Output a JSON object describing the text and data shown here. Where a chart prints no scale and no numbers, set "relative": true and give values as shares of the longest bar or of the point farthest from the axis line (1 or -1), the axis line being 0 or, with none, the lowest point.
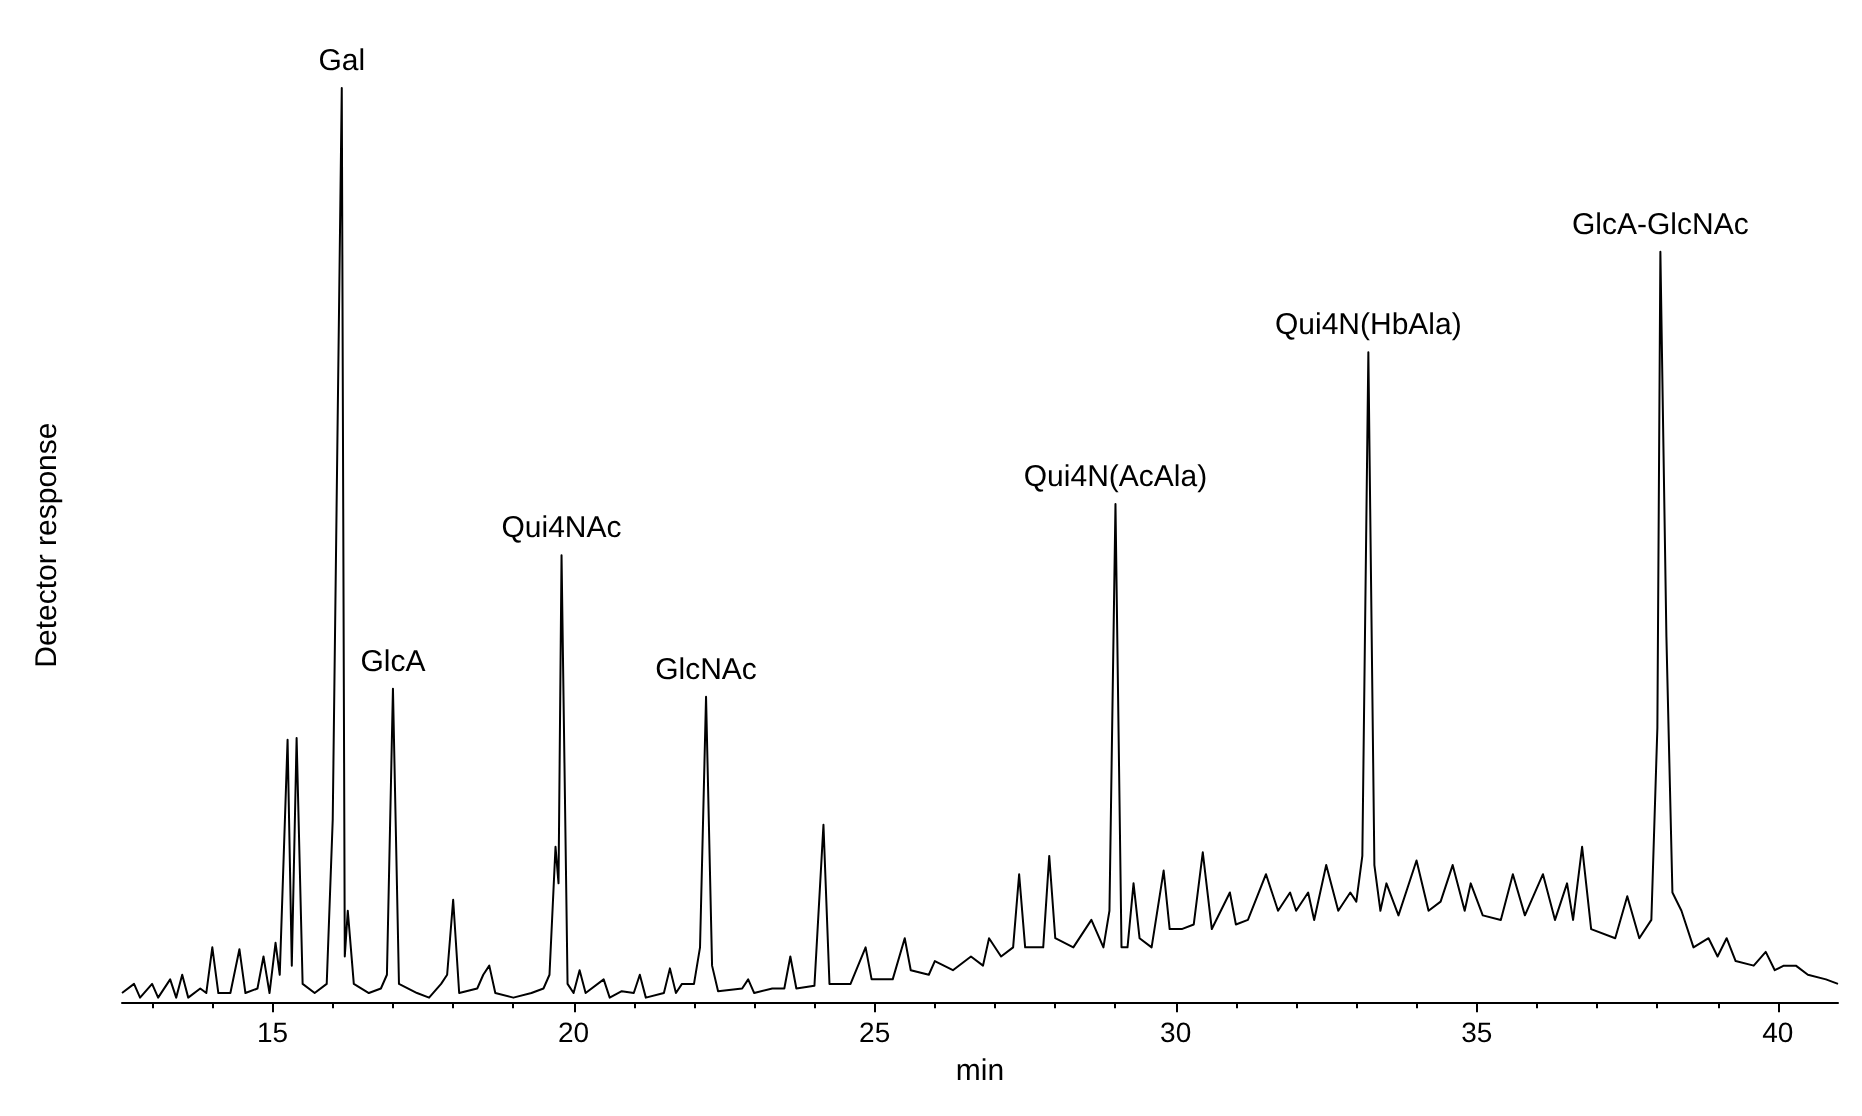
{
  "chart_data": {
    "type": "line",
    "xlabel": "min",
    "ylabel": "Detector response",
    "relative": true,
    "xlim": [
      12.5,
      41
    ],
    "xticks": [
      15,
      20,
      25,
      30,
      35,
      40
    ],
    "color": "#000000",
    "x": [
      12.5,
      12.7,
      12.8,
      13.0,
      13.1,
      13.3,
      13.4,
      13.5,
      13.6,
      13.8,
      13.9,
      14.0,
      14.1,
      14.3,
      14.45,
      14.55,
      14.75,
      14.85,
      14.95,
      15.05,
      15.12,
      15.25,
      15.32,
      15.4,
      15.5,
      15.7,
      15.9,
      16.0,
      16.15,
      16.2,
      16.25,
      16.35,
      16.6,
      16.8,
      16.9,
      17.0,
      17.1,
      17.4,
      17.6,
      17.8,
      17.9,
      18.0,
      18.1,
      18.4,
      18.5,
      18.6,
      18.7,
      19.0,
      19.3,
      19.5,
      19.6,
      19.7,
      19.75,
      19.8,
      19.9,
      20.0,
      20.1,
      20.2,
      20.5,
      20.6,
      20.8,
      21.0,
      21.1,
      21.2,
      21.5,
      21.6,
      21.7,
      21.8,
      22.0,
      22.1,
      22.2,
      22.3,
      22.4,
      22.8,
      22.9,
      23.0,
      23.3,
      23.5,
      23.6,
      23.7,
      24.0,
      24.15,
      24.25,
      24.6,
      24.85,
      24.95,
      25.3,
      25.5,
      25.6,
      25.9,
      26.0,
      26.3,
      26.6,
      26.8,
      26.9,
      27.1,
      27.3,
      27.4,
      27.5,
      27.8,
      27.9,
      28.0,
      28.3,
      28.6,
      28.8,
      28.9,
      29.0,
      29.1,
      29.2,
      29.3,
      29.4,
      29.6,
      29.8,
      29.9,
      30.1,
      30.3,
      30.45,
      30.6,
      30.9,
      31.0,
      31.2,
      31.5,
      31.7,
      31.9,
      32.0,
      32.2,
      32.3,
      32.5,
      32.7,
      32.9,
      33.0,
      33.1,
      33.2,
      33.3,
      33.4,
      33.5,
      33.7,
      34.0,
      34.2,
      34.4,
      34.6,
      34.8,
      34.9,
      35.1,
      35.4,
      35.6,
      35.8,
      36.1,
      36.3,
      36.5,
      36.6,
      36.75,
      36.9,
      37.3,
      37.5,
      37.7,
      37.9,
      38.0,
      38.05,
      38.15,
      38.25,
      38.4,
      38.6,
      38.85,
      39.0,
      39.15,
      39.3,
      39.6,
      39.8,
      39.95,
      40.1,
      40.3,
      40.5,
      40.8,
      41.0
    ],
    "values": [
      0.01,
      0.02,
      0.005,
      0.02,
      0.005,
      0.025,
      0.005,
      0.03,
      0.005,
      0.015,
      0.01,
      0.06,
      0.01,
      0.01,
      0.058,
      0.01,
      0.015,
      0.05,
      0.01,
      0.065,
      0.03,
      0.287,
      0.04,
      0.289,
      0.02,
      0.01,
      0.02,
      0.2,
      1.0,
      0.05,
      0.1,
      0.02,
      0.01,
      0.015,
      0.03,
      0.343,
      0.02,
      0.01,
      0.005,
      0.02,
      0.03,
      0.112,
      0.01,
      0.015,
      0.03,
      0.04,
      0.01,
      0.005,
      0.01,
      0.015,
      0.03,
      0.17,
      0.13,
      0.489,
      0.02,
      0.01,
      0.035,
      0.01,
      0.025,
      0.005,
      0.012,
      0.01,
      0.03,
      0.005,
      0.01,
      0.037,
      0.01,
      0.02,
      0.02,
      0.06,
      0.334,
      0.04,
      0.012,
      0.015,
      0.025,
      0.01,
      0.015,
      0.015,
      0.05,
      0.015,
      0.018,
      0.194,
      0.02,
      0.02,
      0.06,
      0.025,
      0.025,
      0.07,
      0.035,
      0.03,
      0.045,
      0.035,
      0.05,
      0.04,
      0.07,
      0.05,
      0.06,
      0.14,
      0.06,
      0.06,
      0.16,
      0.07,
      0.06,
      0.09,
      0.06,
      0.1,
      0.545,
      0.06,
      0.06,
      0.13,
      0.07,
      0.06,
      0.144,
      0.08,
      0.08,
      0.085,
      0.164,
      0.08,
      0.12,
      0.085,
      0.09,
      0.14,
      0.1,
      0.12,
      0.1,
      0.12,
      0.09,
      0.15,
      0.1,
      0.12,
      0.11,
      0.16,
      0.711,
      0.15,
      0.1,
      0.13,
      0.095,
      0.155,
      0.1,
      0.11,
      0.15,
      0.1,
      0.13,
      0.095,
      0.09,
      0.14,
      0.095,
      0.14,
      0.09,
      0.13,
      0.09,
      0.17,
      0.08,
      0.07,
      0.116,
      0.07,
      0.09,
      0.3,
      0.821,
      0.4,
      0.12,
      0.1,
      0.06,
      0.07,
      0.05,
      0.07,
      0.045,
      0.04,
      0.055,
      0.035,
      0.04,
      0.04,
      0.03,
      0.025,
      0.02
    ],
    "annotations": [
      {
        "text": "Gal",
        "x": 16.15,
        "y": 1.0
      },
      {
        "text": "GlcA",
        "x": 17.0,
        "y": 0.343
      },
      {
        "text": "Qui4NAc",
        "x": 19.8,
        "y": 0.489
      },
      {
        "text": "GlcNAc",
        "x": 22.2,
        "y": 0.334
      },
      {
        "text": "Qui4N(AcAla)",
        "x": 29.0,
        "y": 0.545
      },
      {
        "text": "Qui4N(HbAla)",
        "x": 33.2,
        "y": 0.711
      },
      {
        "text": "GlcA-GlcNAc",
        "x": 38.05,
        "y": 0.821
      }
    ]
  }
}
